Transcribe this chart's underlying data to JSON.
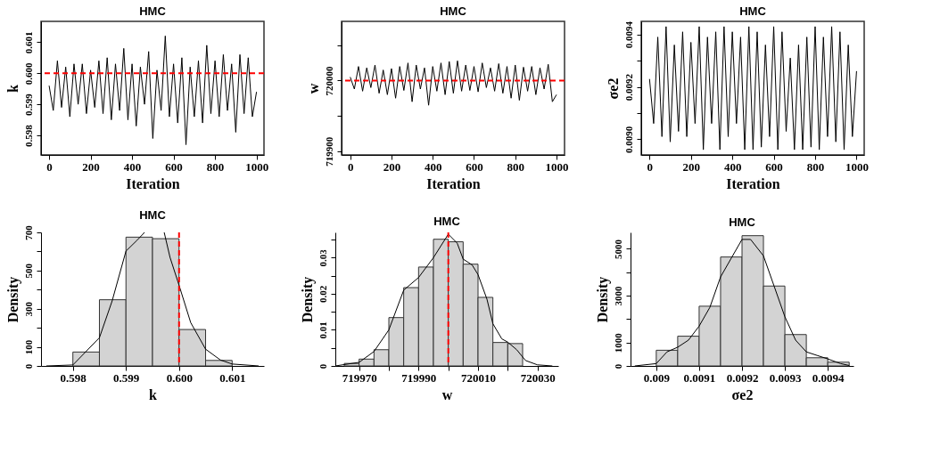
{
  "chart_data": [
    {
      "type": "line",
      "title": "HMC",
      "xlabel": "Iteration",
      "ylabel": "k",
      "color": "#000000",
      "line_style": "solid",
      "x": [
        0,
        20,
        40,
        60,
        80,
        100,
        120,
        140,
        160,
        180,
        200,
        220,
        240,
        260,
        280,
        300,
        320,
        340,
        360,
        380,
        400,
        420,
        440,
        460,
        480,
        500,
        520,
        540,
        560,
        580,
        600,
        620,
        640,
        660,
        680,
        700,
        720,
        740,
        760,
        780,
        800,
        820,
        840,
        860,
        880,
        900,
        920,
        940,
        960,
        980,
        1000
      ],
      "values": [
        0.5996,
        0.5988,
        0.6004,
        0.5989,
        0.6002,
        0.5986,
        0.6003,
        0.599,
        0.6003,
        0.5987,
        0.6001,
        0.5989,
        0.6004,
        0.5987,
        0.6005,
        0.5985,
        0.6003,
        0.5988,
        0.6008,
        0.5985,
        0.6003,
        0.5983,
        0.6002,
        0.599,
        0.6007,
        0.5979,
        0.6001,
        0.5988,
        0.6012,
        0.5986,
        0.6003,
        0.5984,
        0.6005,
        0.5977,
        0.6002,
        0.5986,
        0.6004,
        0.5984,
        0.6009,
        0.5987,
        0.6004,
        0.5986,
        0.6006,
        0.5988,
        0.6003,
        0.5981,
        0.6006,
        0.5987,
        0.6005,
        0.5986,
        0.5994
      ],
      "xlim": [
        -39,
        1036
      ],
      "xticks": [
        0,
        200,
        400,
        600,
        800,
        1000
      ],
      "ylim": [
        0.59737,
        0.60167
      ],
      "yticks": [
        {
          "value": 0.598,
          "label": "0.598"
        },
        {
          "value": 0.599,
          "label": "0.599"
        },
        {
          "value": 0.6,
          "label": "0.600"
        },
        {
          "value": 0.601,
          "label": "0.601"
        }
      ],
      "ref_lines": [
        {
          "axis": "y",
          "value": 0.6,
          "color": "#ff0000",
          "line_style": "dashed"
        }
      ]
    },
    {
      "type": "line",
      "title": "HMC",
      "xlabel": "Iteration",
      "ylabel": "w",
      "color": "#000000",
      "line_style": "solid",
      "x": [
        0,
        20,
        40,
        60,
        80,
        100,
        120,
        140,
        160,
        180,
        200,
        220,
        240,
        260,
        280,
        300,
        320,
        340,
        360,
        380,
        400,
        420,
        440,
        460,
        480,
        500,
        520,
        540,
        560,
        580,
        600,
        620,
        640,
        660,
        680,
        700,
        720,
        740,
        760,
        780,
        800,
        820,
        840,
        860,
        880,
        900,
        920,
        940,
        960,
        980,
        1000
      ],
      "values": [
        720005,
        719988,
        720020,
        719985,
        720018,
        719990,
        720022,
        719982,
        720015,
        719980,
        720017,
        719975,
        720020,
        719986,
        720025,
        719970,
        720022,
        719988,
        720018,
        719965,
        720020,
        719985,
        720025,
        719980,
        720027,
        719982,
        720028,
        719985,
        720022,
        719986,
        720020,
        719984,
        720025,
        719990,
        720018,
        719985,
        720024,
        719982,
        720020,
        719975,
        720022,
        719972,
        720019,
        719985,
        720020,
        719980,
        720018,
        719988,
        720023,
        719970,
        719980
      ],
      "xlim": [
        -42,
        1039
      ],
      "xticks": [
        0,
        200,
        400,
        600,
        800,
        1000
      ],
      "ylim": [
        719894.5,
        720084
      ],
      "yticks": [
        719900,
        {
          "value": 719950,
          "label": null
        },
        720000,
        {
          "value": 720050,
          "label": null
        }
      ],
      "ref_lines": [
        {
          "axis": "y",
          "value": 720000,
          "color": "#ff0000",
          "line_style": "dashed"
        }
      ]
    },
    {
      "type": "line",
      "title": "HMC",
      "xlabel": "Iteration",
      "ylabel": "σe2",
      "color": "#000000",
      "line_style": "solid",
      "x": [
        0,
        20,
        40,
        60,
        80,
        100,
        120,
        140,
        160,
        180,
        200,
        220,
        240,
        260,
        280,
        300,
        320,
        340,
        360,
        380,
        400,
        420,
        440,
        460,
        480,
        500,
        520,
        540,
        560,
        580,
        600,
        620,
        640,
        660,
        680,
        700,
        720,
        740,
        760,
        780,
        800,
        820,
        840,
        860,
        880,
        900,
        920,
        940,
        960,
        980,
        1000
      ],
      "values": [
        0.00923,
        0.00906,
        0.00939,
        0.00901,
        0.00943,
        0.00899,
        0.00936,
        0.00903,
        0.00941,
        0.00901,
        0.00937,
        0.00906,
        0.00943,
        0.00896,
        0.00939,
        0.00906,
        0.00941,
        0.00896,
        0.00943,
        0.00901,
        0.00941,
        0.00906,
        0.00939,
        0.00896,
        0.00943,
        0.00896,
        0.00941,
        0.00897,
        0.00936,
        0.00901,
        0.00943,
        0.00896,
        0.00941,
        0.00903,
        0.00931,
        0.00896,
        0.00936,
        0.00896,
        0.00939,
        0.00897,
        0.00943,
        0.00896,
        0.00939,
        0.00901,
        0.00943,
        0.00899,
        0.00941,
        0.00896,
        0.00936,
        0.00901,
        0.00926
      ],
      "xlim": [
        -40,
        1037
      ],
      "xticks": [
        0,
        200,
        400,
        600,
        800,
        1000
      ],
      "ylim": [
        0.00894,
        0.00945
      ],
      "yticks": [
        {
          "value": 0.009,
          "label": "0.0090"
        },
        {
          "value": 0.0091,
          "label": null
        },
        {
          "value": 0.0092,
          "label": "0.0092"
        },
        {
          "value": 0.0093,
          "label": null
        },
        {
          "value": 0.0094,
          "label": "0.0094"
        }
      ]
    },
    {
      "type": "histogram",
      "title": "HMC",
      "xlabel": "k",
      "ylabel": "Density",
      "color": "#d3d3d3",
      "bins": [
        0.598,
        0.5985,
        0.599,
        0.5995,
        0.6,
        0.6005,
        0.601
      ],
      "values": [
        73,
        347,
        675,
        667,
        191,
        29
      ],
      "series": [
        {
          "type": "line",
          "color": "#000000",
          "line_style": "solid",
          "x": [
            0.5975,
            0.598,
            0.5985,
            0.59874,
            0.599,
            0.59921,
            0.59935,
            0.5995,
            0.59972,
            0.59983,
            0.6,
            0.60022,
            0.6005,
            0.60078,
            0.601,
            0.6015
          ],
          "values": [
            0,
            5,
            148,
            341,
            602,
            659,
            700,
            null,
            700,
            569,
            423,
            227,
            88,
            31,
            10,
            0
          ]
        }
      ],
      "xlim": [
        0.5974,
        0.6016
      ],
      "xticks": [
        {
          "value": 0.598,
          "label": "0.598"
        },
        {
          "value": 0.599,
          "label": "0.599"
        },
        {
          "value": 0.6,
          "label": "0.600"
        },
        {
          "value": 0.601,
          "label": "0.601"
        }
      ],
      "ylim": [
        0,
        700
      ],
      "yticks": [
        0,
        100,
        {
          "value": 200,
          "label": null
        },
        300,
        {
          "value": 400,
          "label": null
        },
        500,
        {
          "value": 600,
          "label": null
        },
        700
      ],
      "ref_lines": [
        {
          "axis": "x",
          "value": 0.6,
          "color": "#ff0000",
          "line_style": "dashed"
        }
      ]
    },
    {
      "type": "histogram",
      "title": "HMC",
      "xlabel": "w",
      "ylabel": "Density",
      "color": "#d3d3d3",
      "bins": [
        719965,
        719970,
        719975,
        719980,
        719985,
        719990,
        719995,
        720000,
        720005,
        720010,
        720015,
        720020,
        720025
      ],
      "values": [
        0.0007,
        0.0019,
        0.0045,
        0.0134,
        0.0217,
        0.0274,
        0.0351,
        0.0344,
        0.0282,
        0.019,
        0.0065,
        0.0062
      ],
      "series": [
        {
          "type": "line",
          "color": "#000000",
          "line_style": "solid",
          "x": [
            719962,
            719970,
            719975,
            719980,
            719985,
            719990,
            719995,
            720000,
            720003,
            720005,
            720008,
            720010,
            720013,
            720015,
            720018,
            720020,
            720023,
            720026,
            720030,
            720035
          ],
          "values": [
            0,
            0.001,
            0.004,
            0.01,
            0.021,
            0.0245,
            0.03,
            0.0365,
            0.034,
            0.0296,
            0.028,
            0.0253,
            0.0185,
            0.0117,
            0.0075,
            0.0066,
            0.0045,
            0.0015,
            0.0003,
            0
          ]
        }
      ],
      "xlim": [
        719962,
        720037
      ],
      "xticks": [
        719970,
        {
          "value": 719980,
          "label": null
        },
        719990,
        {
          "value": 720000,
          "label": null
        },
        720010,
        {
          "value": 720020,
          "label": null
        },
        720030
      ],
      "ylim": [
        0,
        0.037
      ],
      "yticks": [
        0,
        {
          "value": 0.005,
          "label": null
        },
        0.01,
        {
          "value": 0.015,
          "label": null
        },
        0.02,
        {
          "value": 0.025,
          "label": null
        },
        0.03,
        {
          "value": 0.035,
          "label": null
        }
      ],
      "ref_lines": [
        {
          "axis": "x",
          "value": 720000,
          "color": "#ff0000",
          "line_style": "dashed"
        }
      ]
    },
    {
      "type": "histogram",
      "title": "HMC",
      "xlabel": "σe2",
      "ylabel": "Density",
      "color": "#d3d3d3",
      "bins": [
        0.009,
        0.00905,
        0.0091,
        0.00915,
        0.0092,
        0.00925,
        0.0093,
        0.00935,
        0.0094,
        0.00945
      ],
      "values": [
        670,
        1270,
        2550,
        4650,
        5560,
        3410,
        1340,
        350,
        160
      ],
      "series": [
        {
          "type": "line",
          "color": "#000000",
          "line_style": "solid",
          "x": [
            0.00895,
            0.009,
            0.009025,
            0.00905,
            0.009075,
            0.0091,
            0.009125,
            0.00915,
            0.009175,
            0.0092,
            0.00922,
            0.00925,
            0.009275,
            0.0093,
            0.009325,
            0.00935,
            0.009375,
            0.0094,
            0.00943,
            0.00945
          ],
          "values": [
            0,
            100,
            600,
            800,
            1100,
            1700,
            2500,
            3800,
            4600,
            5400,
            5400,
            4700,
            3400,
            2100,
            1100,
            600,
            450,
            300,
            100,
            20
          ]
        }
      ],
      "xlim": [
        0.00894,
        0.00946
      ],
      "xticks": [
        0.009,
        0.0091,
        0.0092,
        0.0093,
        0.0094
      ],
      "ylim": [
        0,
        5700
      ],
      "yticks": [
        0,
        1000,
        {
          "value": 2000,
          "label": null
        },
        3000,
        {
          "value": 4000,
          "label": null
        },
        5000
      ]
    }
  ]
}
